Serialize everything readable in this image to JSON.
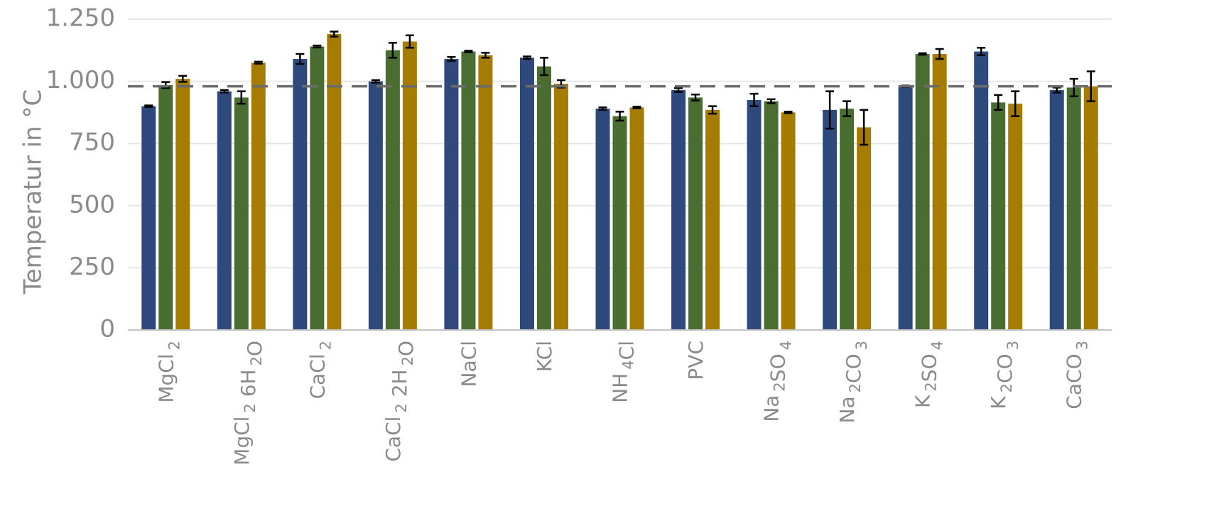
{
  "chart_data": {
    "type": "bar",
    "title": "",
    "xlabel": "",
    "ylabel": "Temperatur in °C",
    "ylim": [
      0,
      1250
    ],
    "yticks": [
      0,
      250,
      500,
      750,
      1000,
      1250
    ],
    "ytick_labels": [
      "0",
      "250",
      "500",
      "750",
      "1.000",
      "1.250"
    ],
    "grid": "horizontal",
    "legend": "none",
    "reference_line": {
      "value": 980,
      "style": "dashed"
    },
    "categories": [
      {
        "label": "MgCl 2",
        "parts": [
          [
            "MgCl",
            false
          ],
          [
            "2",
            true
          ]
        ]
      },
      {
        "label": "MgCl 2 6H 2 O",
        "parts": [
          [
            "MgCl",
            false
          ],
          [
            "2",
            true
          ],
          [
            " 6H",
            false
          ],
          [
            "2",
            true
          ],
          [
            "O",
            false
          ]
        ]
      },
      {
        "label": "CaCl 2",
        "parts": [
          [
            "CaCl",
            false
          ],
          [
            "2",
            true
          ]
        ]
      },
      {
        "label": "CaCl 2 2H 2 O",
        "parts": [
          [
            "CaCl",
            false
          ],
          [
            "2",
            true
          ],
          [
            " 2H",
            false
          ],
          [
            "2",
            true
          ],
          [
            "O",
            false
          ]
        ]
      },
      {
        "label": "NaCl",
        "parts": [
          [
            "NaCl",
            false
          ]
        ]
      },
      {
        "label": "KCl",
        "parts": [
          [
            "KCl",
            false
          ]
        ]
      },
      {
        "label": "NH 4 Cl",
        "parts": [
          [
            "NH",
            false
          ],
          [
            "4",
            true
          ],
          [
            "Cl",
            false
          ]
        ]
      },
      {
        "label": "PVC",
        "parts": [
          [
            "PVC",
            false
          ]
        ]
      },
      {
        "label": "Na 2 SO 4",
        "parts": [
          [
            "Na",
            false
          ],
          [
            "2",
            true
          ],
          [
            "SO",
            false
          ],
          [
            "4",
            true
          ]
        ]
      },
      {
        "label": "Na 2 CO 3",
        "parts": [
          [
            "Na",
            false
          ],
          [
            "2",
            true
          ],
          [
            "CO",
            false
          ],
          [
            "3",
            true
          ]
        ]
      },
      {
        "label": "K 2 SO 4",
        "parts": [
          [
            "K",
            false
          ],
          [
            "2",
            true
          ],
          [
            "SO",
            false
          ],
          [
            "4",
            true
          ]
        ]
      },
      {
        "label": "K 2 CO 3",
        "parts": [
          [
            "K",
            false
          ],
          [
            "2",
            true
          ],
          [
            "CO",
            false
          ],
          [
            "3",
            true
          ]
        ]
      },
      {
        "label": "CaCO 3",
        "parts": [
          [
            "CaCO",
            false
          ],
          [
            "3",
            true
          ]
        ]
      }
    ],
    "series": [
      {
        "color": "#2e4a7c",
        "values": [
          900,
          960,
          1090,
          1000,
          1090,
          1095,
          890,
          965,
          925,
          885,
          980,
          1120,
          965
        ],
        "errors": [
          3,
          5,
          20,
          5,
          8,
          5,
          5,
          8,
          25,
          75,
          3,
          15,
          10
        ]
      },
      {
        "color": "#4a6e32",
        "values": [
          985,
          935,
          1140,
          1125,
          1120,
          1060,
          860,
          935,
          920,
          890,
          1110,
          915,
          975
        ],
        "errors": [
          12,
          25,
          4,
          30,
          3,
          35,
          18,
          12,
          8,
          30,
          3,
          30,
          35
        ]
      },
      {
        "color": "#a67c00",
        "values": [
          1010,
          1075,
          1190,
          1160,
          1105,
          990,
          895,
          885,
          875,
          815,
          1110,
          910,
          980
        ],
        "errors": [
          12,
          4,
          10,
          25,
          10,
          15,
          3,
          15,
          3,
          70,
          20,
          50,
          60
        ]
      }
    ]
  }
}
